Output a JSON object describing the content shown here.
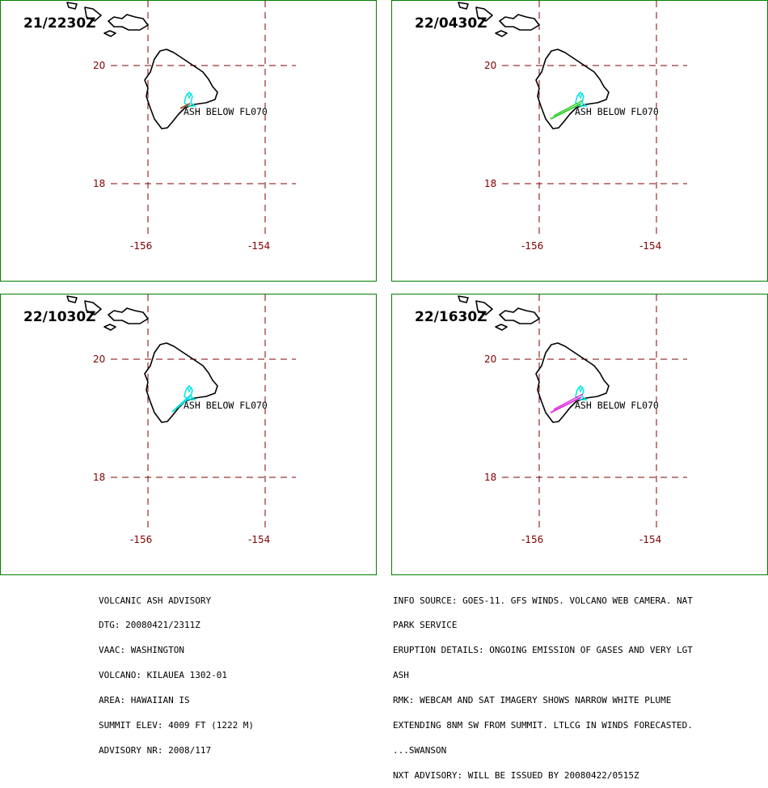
{
  "panels": [
    {
      "time": "21/2230Z",
      "ash_label": "ASH BELOW FL070",
      "plume_color": "#00e5e5",
      "line_color": "#a0522d"
    },
    {
      "time": "22/0430Z",
      "ash_label": "ASH BELOW FL070",
      "plume_color": "#00e5e5",
      "line_color": "#33cc33"
    },
    {
      "time": "22/1030Z",
      "ash_label": "ASH BELOW FL070",
      "plume_color": "#00e5e5",
      "line_color": "#00e5e5"
    },
    {
      "time": "22/1630Z",
      "ash_label": "ASH BELOW FL070",
      "plume_color": "#00e5e5",
      "line_color": "#dd33dd"
    }
  ],
  "axes": {
    "lat_labels": [
      "20",
      "18"
    ],
    "lon_labels": [
      "-156",
      "-154"
    ],
    "grid_color": "#800000",
    "coast_color": "#000000",
    "frame_color": "#008000"
  },
  "advisory_left": [
    "VOLCANIC ASH ADVISORY",
    "DTG: 20080421/2311Z",
    "VAAC: WASHINGTON",
    "VOLCANO: KILAUEA 1302-01",
    "AREA: HAWAIIAN IS",
    "SUMMIT ELEV: 4009 FT (1222 M)",
    "ADVISORY NR: 2008/117"
  ],
  "advisory_right": [
    "INFO SOURCE: GOES-11. GFS WINDS. VOLCANO WEB CAMERA. NAT",
    "PARK SERVICE",
    "ERUPTION DETAILS: ONGOING EMISSION OF GASES AND VERY LGT",
    "ASH",
    "RMK: WEBCAM AND SAT IMAGERY SHOWS NARROW WHITE PLUME",
    "EXTENDING 8NM SW FROM SUMMIT. LTLCG IN WINDS FORECASTED.",
    "...SWANSON",
    "NXT ADVISORY: WILL BE ISSUED BY 20080422/0515Z"
  ]
}
